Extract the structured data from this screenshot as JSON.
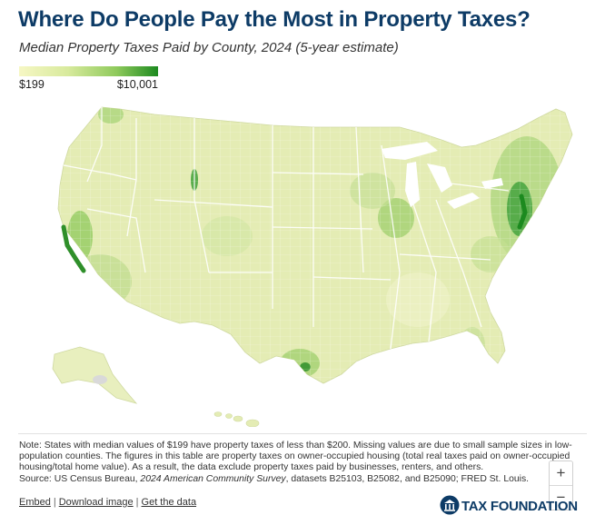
{
  "header": {
    "title": "Where Do People Pay the Most in Property Taxes?",
    "subtitle": "Median Property Taxes Paid by County, 2024 (5-year estimate)"
  },
  "legend": {
    "min_label": "$199",
    "max_label": "$10,001",
    "colors": [
      "#f6f7c4",
      "#d8ea9d",
      "#8fca5c",
      "#1c8a1f"
    ]
  },
  "map": {
    "land_color": "#e4ecb4",
    "border_color": "#ffffff",
    "missing_color": "#d9d9d9",
    "zoom_in_label": "+",
    "zoom_out_label": "−"
  },
  "footer": {
    "note_text": "Note: States with median values of $199 have property taxes of less than $200. Missing values are due to small sample sizes in low-population counties. The figures in this table are property taxes on owner-occupied housing (total real taxes paid on owner-occupied housing/total home value). As a result, the data exclude property taxes paid by businesses, renters, and others.",
    "source_prefix": "Source: US Census Bureau, ",
    "source_italic": "2024 American Community Survey",
    "source_suffix": ", datasets B25103, B25082, and B25090; FRED St. Louis.",
    "links": {
      "embed": "Embed",
      "download": "Download image",
      "data": "Get the data"
    },
    "brand": "TAX FOUNDATION"
  }
}
